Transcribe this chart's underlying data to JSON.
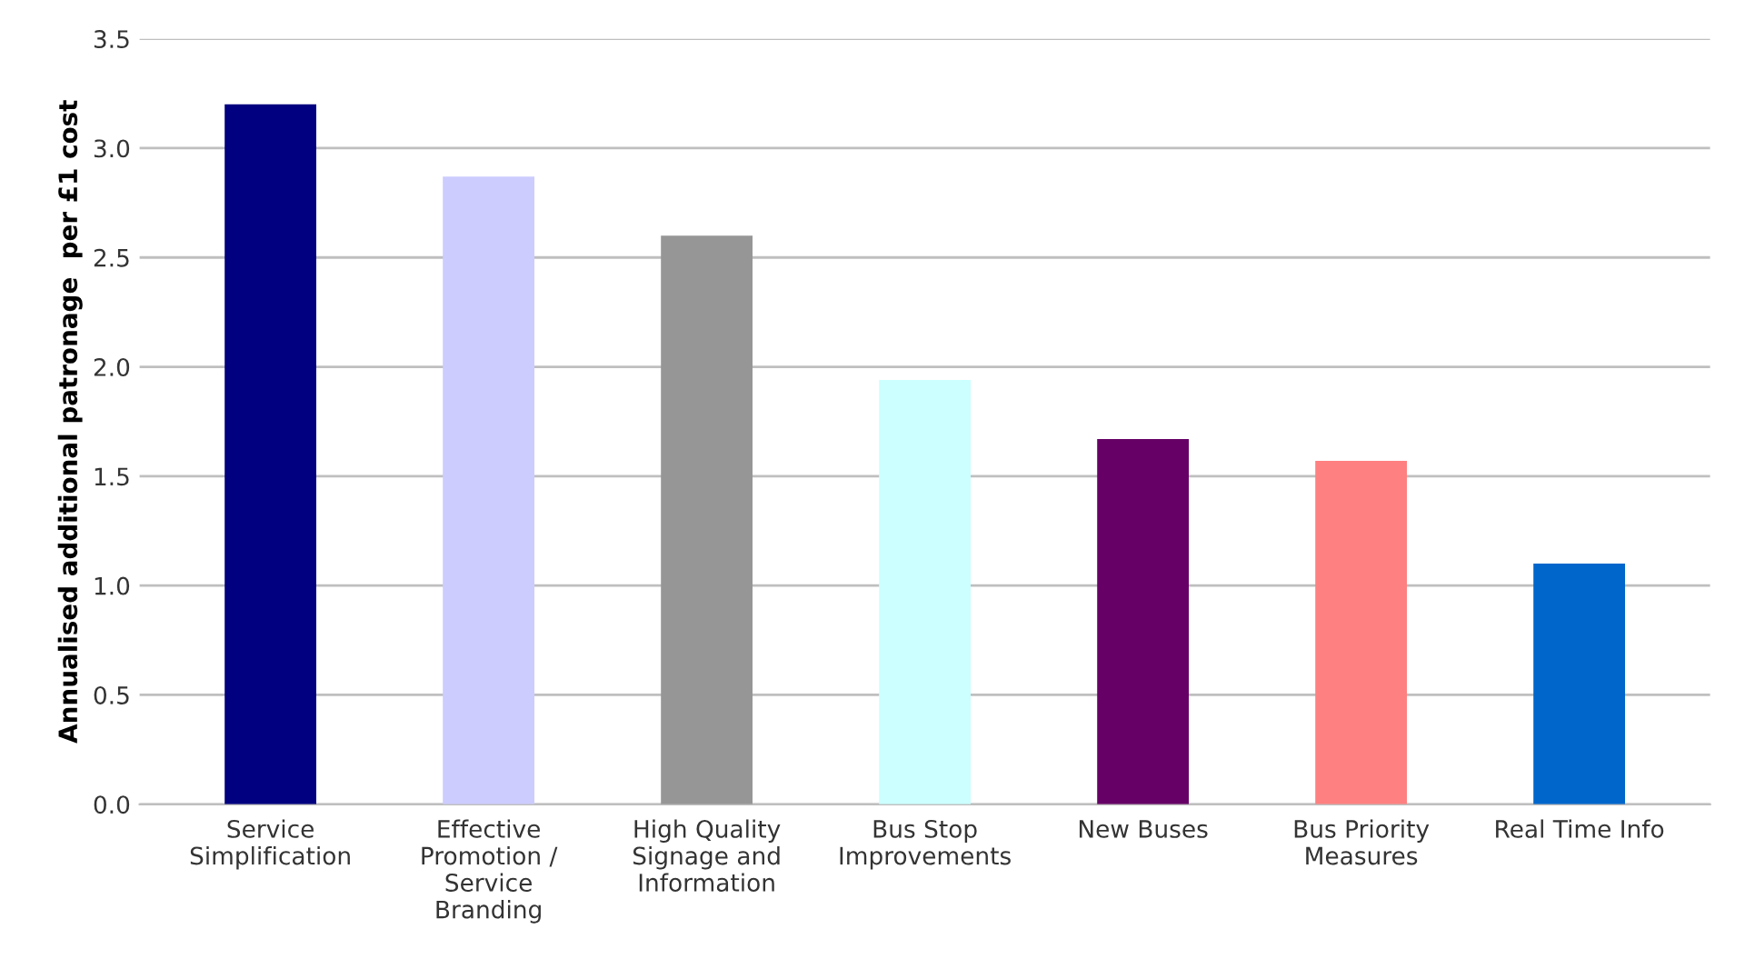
{
  "chart_data": {
    "type": "bar",
    "ylabel": "Annualised additional patronage  per £1 cost",
    "categories": [
      "Service\nSimplification",
      "Effective\nPromotion /\nService\nBranding",
      "High Quality\nSignage and\nInformation",
      "Bus Stop\nImprovements",
      "New Buses",
      "Bus Priority\nMeasures",
      "Real Time Info"
    ],
    "values": [
      3.2,
      2.87,
      2.6,
      1.94,
      1.67,
      1.57,
      1.1
    ],
    "colors": [
      "#000080",
      "#ccccff",
      "#969696",
      "#ccffff",
      "#660066",
      "#ff8080",
      "#0066cc"
    ],
    "ylim": [
      0,
      3.5
    ],
    "yticks": [
      {
        "value": 0,
        "label": "0.0"
      },
      {
        "value": 0.5,
        "label": "0.5"
      },
      {
        "value": 1,
        "label": "1.0"
      },
      {
        "value": 1.5,
        "label": "1.5"
      },
      {
        "value": 2,
        "label": "2.0"
      },
      {
        "value": 2.5,
        "label": "2.5"
      },
      {
        "value": 3,
        "label": "3.0"
      },
      {
        "value": 3.5,
        "label": "3.5"
      }
    ],
    "grid": "y"
  }
}
